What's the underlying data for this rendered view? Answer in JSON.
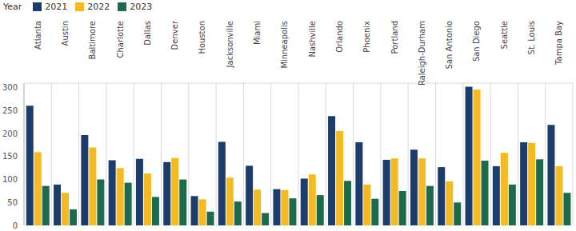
{
  "chart_data": {
    "type": "bar",
    "legend_title": "Year",
    "legend": "top-left",
    "grid": true,
    "categories": [
      "Atlanta",
      "Austin",
      "Baltimore",
      "Charlotte",
      "Dallas",
      "Denver",
      "Houston",
      "Jacksonville",
      "Miami",
      "Minneapolis",
      "Nashville",
      "Orlando",
      "Phoenix",
      "Portland",
      "Raleigh-Durham",
      "San Antonio",
      "San Diego",
      "Seattle",
      "St. Louis",
      "Tampa Bay"
    ],
    "series": [
      {
        "name": "2021",
        "color": "#1c3d6c",
        "values": [
          261,
          89,
          197,
          142,
          145,
          138,
          64,
          182,
          130,
          79,
          102,
          238,
          181,
          143,
          165,
          127,
          302,
          129,
          181,
          219
        ]
      },
      {
        "name": "2022",
        "color": "#f5b922",
        "values": [
          160,
          71,
          170,
          125,
          113,
          147,
          57,
          104,
          78,
          77,
          111,
          206,
          89,
          146,
          146,
          96,
          296,
          158,
          180,
          129
        ]
      },
      {
        "name": "2023",
        "color": "#1d6b4c",
        "values": [
          86,
          35,
          100,
          93,
          62,
          100,
          30,
          52,
          27,
          59,
          66,
          97,
          58,
          75,
          86,
          50,
          141,
          89,
          144,
          71
        ]
      }
    ],
    "ylim": [
      0,
      310
    ],
    "yticks": [
      0,
      50,
      100,
      150,
      200,
      250,
      300
    ]
  }
}
